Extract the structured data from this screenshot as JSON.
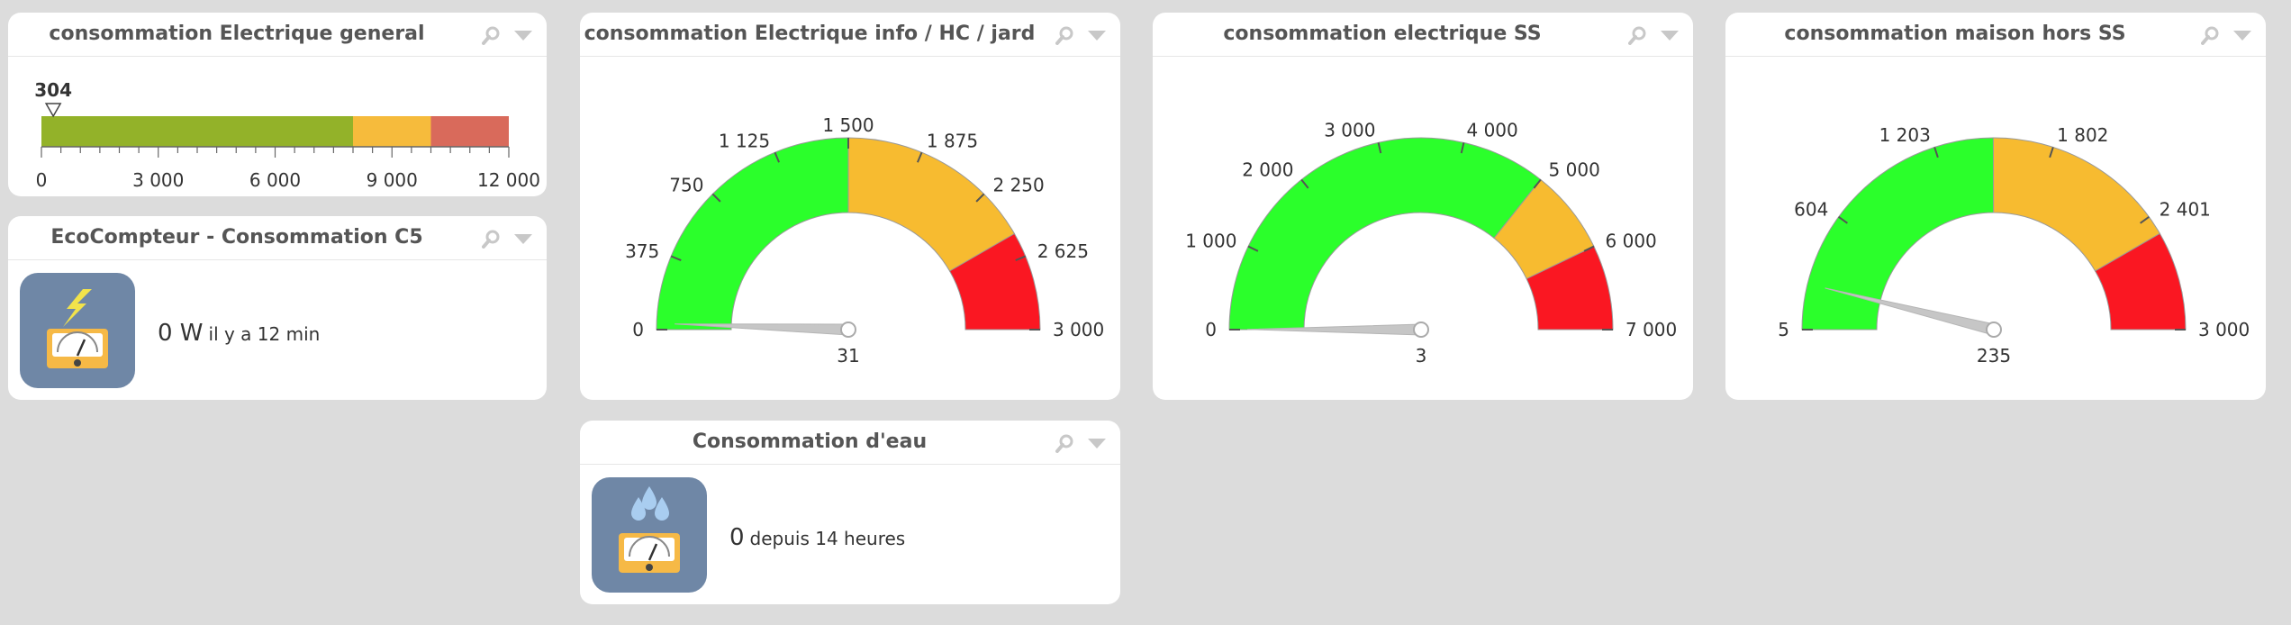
{
  "colors": {
    "green": "#2bff2b",
    "yellow": "#f7bb30",
    "red": "#fa1722",
    "linear_green": "#93b229",
    "linear_yellow": "#f6bb3c",
    "linear_red": "#d96a5b",
    "tile": "#6f87a6"
  },
  "panels": {
    "general": {
      "title": "consommation Electrique general",
      "value": 304,
      "value_label": "304",
      "scale": {
        "min": 0,
        "max": 12000,
        "green_to": 8000,
        "yellow_to": 10000
      },
      "tick_labels": [
        "0",
        "3 000",
        "6 000",
        "9 000",
        "12 000"
      ],
      "tick_values": [
        0,
        3000,
        6000,
        9000,
        12000
      ]
    },
    "ecocompteur": {
      "title": "EcoCompteur - Consommation C5",
      "icon": "electric-meter-icon",
      "value": "0 W",
      "since": "il y a 12 min"
    },
    "info": {
      "title": "consommation Electrique info / HC / jard",
      "min": 0,
      "max": 3000,
      "green_to": 1500,
      "yellow_to": 2500,
      "value": 31,
      "value_label": "31",
      "tick_labels": [
        "0",
        "375",
        "750",
        "1 125",
        "1 500",
        "1 875",
        "2 250",
        "2 625",
        "3 000"
      ],
      "tick_values": [
        0,
        375,
        750,
        1125,
        1500,
        1875,
        2250,
        2625,
        3000
      ]
    },
    "ss": {
      "title": "consommation electrique SS",
      "min": 0,
      "max": 7000,
      "green_to": 5000,
      "yellow_to": 6000,
      "value": 3,
      "value_label": "3",
      "tick_labels": [
        "0",
        "1 000",
        "2 000",
        "3 000",
        "4 000",
        "5 000",
        "6 000",
        "7 000"
      ],
      "tick_values": [
        0,
        1000,
        2000,
        3000,
        4000,
        5000,
        6000,
        7000
      ]
    },
    "maison": {
      "title": "consommation maison hors SS",
      "min": 5,
      "max": 3000,
      "green_to": 1500,
      "yellow_to": 2500,
      "value": 235,
      "value_label": "235",
      "tick_labels": [
        "5",
        "604",
        "1 203",
        "1 802",
        "2 401",
        "3 000"
      ],
      "tick_values": [
        5,
        604,
        1203,
        1802,
        2401,
        3000
      ]
    },
    "eau": {
      "title": "Consommation d'eau",
      "icon": "water-meter-icon",
      "value": "0",
      "since": "depuis 14 heures"
    }
  }
}
